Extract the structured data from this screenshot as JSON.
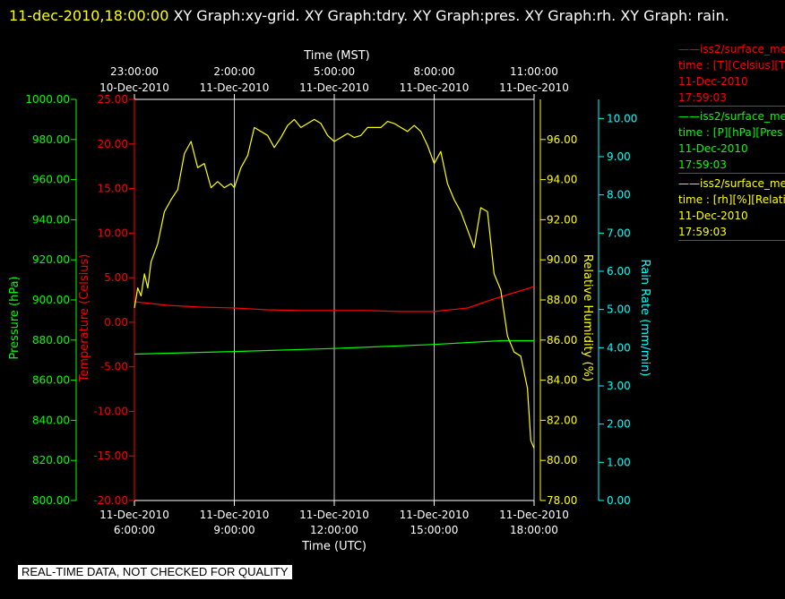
{
  "header": {
    "timestamp": "11-dec-2010,18:00:00",
    "titles": "XY Graph:xy-grid.  XY Graph:tdry.  XY Graph:pres.  XY Graph:rh.  XY Graph: rain."
  },
  "legend": [
    {
      "line": "——iss2/surface_me",
      "desc": "time : [T][Celsius][T",
      "date": "11-Dec-2010",
      "time": "17:59:03",
      "color": "#ff0000"
    },
    {
      "line": "——iss2/surface_me",
      "desc": "time : [P][hPa][Pres",
      "date": "11-Dec-2010",
      "time": "17:59:03",
      "color": "#00ff00"
    },
    {
      "line": "——iss2/surface_me",
      "desc": "time : [rh][%][Relati",
      "date": "11-Dec-2010",
      "time": "17:59:03",
      "color": "#ffff00"
    }
  ],
  "note": "REAL-TIME DATA, NOT CHECKED FOR QUALITY",
  "chart_data": {
    "type": "line",
    "top_axis": {
      "title": "Time (MST)",
      "ticks": [
        {
          "time": "23:00:00",
          "date": "10-Dec-2010",
          "utc_hour": 6
        },
        {
          "time": "2:00:00",
          "date": "11-Dec-2010",
          "utc_hour": 9
        },
        {
          "time": "5:00:00",
          "date": "11-Dec-2010",
          "utc_hour": 12
        },
        {
          "time": "8:00:00",
          "date": "11-Dec-2010",
          "utc_hour": 15
        },
        {
          "time": "11:00:00",
          "date": "11-Dec-2010",
          "utc_hour": 18
        }
      ]
    },
    "bottom_axis": {
      "title": "Time (UTC)",
      "xlim": [
        6,
        18
      ],
      "ticks": [
        {
          "date": "11-Dec-2010",
          "time": "6:00:00",
          "utc_hour": 6
        },
        {
          "date": "11-Dec-2010",
          "time": "9:00:00",
          "utc_hour": 9
        },
        {
          "date": "11-Dec-2010",
          "time": "12:00:00",
          "utc_hour": 12
        },
        {
          "date": "11-Dec-2010",
          "time": "15:00:00",
          "utc_hour": 15
        },
        {
          "date": "11-Dec-2010",
          "time": "18:00:00",
          "utc_hour": 18
        }
      ]
    },
    "axes": {
      "pressure": {
        "title": "Pressure (hPa)",
        "color": "#00ff00",
        "ylim": [
          800,
          1000
        ],
        "ticks": [
          "1000.00",
          "980.00",
          "960.00",
          "940.00",
          "920.00",
          "900.00",
          "880.00",
          "860.00",
          "840.00",
          "820.00",
          "800.00"
        ]
      },
      "temperature": {
        "title": "Temperature (Celsius)",
        "color": "#ff0000",
        "ylim": [
          -20,
          25
        ],
        "ticks": [
          "25.00",
          "20.00",
          "15.00",
          "10.00",
          "5.00",
          "0.00",
          "-5.00",
          "-10.00",
          "-15.00",
          "-20.00"
        ]
      },
      "rh": {
        "title": "Relative Humidity (%)",
        "color": "#ffff00",
        "ylim": [
          78,
          98
        ],
        "ticks": [
          "96.00",
          "94.00",
          "92.00",
          "90.00",
          "88.00",
          "86.00",
          "84.00",
          "82.00",
          "80.00",
          "78.00"
        ]
      },
      "rain": {
        "title": "Rain Rate (mm/min)",
        "color": "#00ffff",
        "ylim": [
          0,
          10.5
        ],
        "ticks": [
          "10.00",
          "9.00",
          "8.00",
          "7.00",
          "6.00",
          "5.00",
          "4.00",
          "3.00",
          "2.00",
          "1.00",
          "0.00"
        ]
      }
    },
    "series": [
      {
        "axis": "temperature",
        "color": "#ff0000",
        "x": [
          6.0,
          7.0,
          8.0,
          9.0,
          10.0,
          11.0,
          12.0,
          13.0,
          14.0,
          15.0,
          16.0,
          16.7,
          17.3,
          18.0
        ],
        "y": [
          2.3,
          1.9,
          1.7,
          1.6,
          1.4,
          1.3,
          1.3,
          1.3,
          1.2,
          1.2,
          1.6,
          2.5,
          3.2,
          4.0
        ]
      },
      {
        "axis": "pressure",
        "color": "#00ff00",
        "x": [
          6.0,
          9.0,
          12.0,
          15.0,
          17.0,
          18.0
        ],
        "y": [
          873.0,
          874.3,
          875.8,
          877.8,
          879.7,
          879.7
        ]
      },
      {
        "axis": "rh",
        "color": "#ffff00",
        "x": [
          6.0,
          6.1,
          6.2,
          6.3,
          6.4,
          6.5,
          6.7,
          6.9,
          7.1,
          7.3,
          7.5,
          7.7,
          7.9,
          8.1,
          8.3,
          8.5,
          8.7,
          8.9,
          9.0,
          9.2,
          9.4,
          9.6,
          9.8,
          10.0,
          10.2,
          10.4,
          10.6,
          10.8,
          11.0,
          11.2,
          11.4,
          11.6,
          11.8,
          12.0,
          12.2,
          12.4,
          12.6,
          12.8,
          13.0,
          13.2,
          13.4,
          13.6,
          13.8,
          14.0,
          14.2,
          14.4,
          14.6,
          14.8,
          15.0,
          15.2,
          15.4,
          15.6,
          15.8,
          16.0,
          16.2,
          16.4,
          16.6,
          16.8,
          17.0,
          17.2,
          17.4,
          17.6,
          17.8,
          17.9,
          18.0
        ],
        "y": [
          87.6,
          88.6,
          88.2,
          89.3,
          88.6,
          89.9,
          90.8,
          92.4,
          93.0,
          93.5,
          95.3,
          95.9,
          94.6,
          94.8,
          93.6,
          93.9,
          93.6,
          93.8,
          93.6,
          94.6,
          95.2,
          96.6,
          96.4,
          96.2,
          95.6,
          96.1,
          96.7,
          97.0,
          96.6,
          96.8,
          97.0,
          96.8,
          96.2,
          95.9,
          96.1,
          96.3,
          96.1,
          96.2,
          96.6,
          96.6,
          96.6,
          96.9,
          96.8,
          96.6,
          96.4,
          96.7,
          96.4,
          95.7,
          94.8,
          95.4,
          93.8,
          93.0,
          92.4,
          91.5,
          90.6,
          92.6,
          92.4,
          89.3,
          88.5,
          86.2,
          85.4,
          85.2,
          83.6,
          81.0,
          80.6
        ]
      }
    ]
  }
}
